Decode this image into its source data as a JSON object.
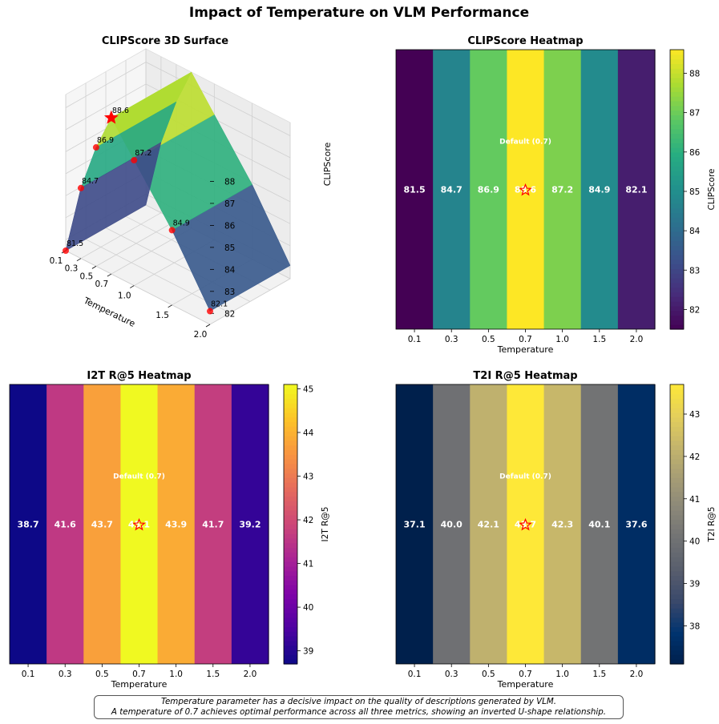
{
  "figure_title": "Impact of Temperature on VLM Performance",
  "caption": {
    "line1": "Temperature parameter has a decisive impact on the quality of descriptions generated by VLM.",
    "line2": "A temperature of 0.7 achieves optimal performance across all three metrics, showing an inverted U-shape relationship."
  },
  "colors": {
    "highlight_marker": "#ff0000",
    "annotation_text": "#ffffff"
  },
  "chart_data": [
    {
      "type": "surface3d",
      "title": "CLIPScore 3D Surface",
      "xlabel": "Temperature",
      "zlabel": "CLIPScore",
      "x_ticks": [
        "0.1",
        "0.3",
        "0.5",
        "0.7",
        "1.0",
        "1.5",
        "2.0"
      ],
      "z_ticks": [
        "82",
        "83",
        "84",
        "85",
        "86",
        "87",
        "88"
      ],
      "x": [
        0.1,
        0.3,
        0.5,
        0.7,
        1.0,
        1.5,
        2.0
      ],
      "values": [
        81.5,
        84.7,
        86.9,
        88.6,
        87.2,
        84.9,
        82.1
      ],
      "point_labels": [
        "81.5",
        "84.7",
        "86.9",
        "88.6",
        "87.2",
        "84.9",
        "82.1"
      ],
      "highlight_index": 3,
      "colormap": "viridis",
      "grid": true
    },
    {
      "type": "heatmap",
      "title": "CLIPScore Heatmap",
      "xlabel": "Temperature",
      "colorbar_label": "CLIPScore",
      "colormap": "viridis",
      "categories": [
        "0.1",
        "0.3",
        "0.5",
        "0.7",
        "1.0",
        "1.5",
        "2.0"
      ],
      "values": [
        81.5,
        84.7,
        86.9,
        88.6,
        87.2,
        84.9,
        82.1
      ],
      "cell_labels": [
        "81.5",
        "84.7",
        "86.9",
        "88.6",
        "87.2",
        "84.9",
        "82.1"
      ],
      "colorbar_ticks": [
        "82",
        "83",
        "84",
        "85",
        "86",
        "87",
        "88"
      ],
      "annotation": "Default (0.7)",
      "highlight_index": 3
    },
    {
      "type": "heatmap",
      "title": "I2T R@5 Heatmap",
      "xlabel": "Temperature",
      "colorbar_label": "I2T R@5",
      "colormap": "plasma",
      "categories": [
        "0.1",
        "0.3",
        "0.5",
        "0.7",
        "1.0",
        "1.5",
        "2.0"
      ],
      "values": [
        38.7,
        41.6,
        43.7,
        45.1,
        43.9,
        41.7,
        39.2
      ],
      "cell_labels": [
        "38.7",
        "41.6",
        "43.7",
        "45.1",
        "43.9",
        "41.7",
        "39.2"
      ],
      "colorbar_ticks": [
        "39",
        "40",
        "41",
        "42",
        "43",
        "44",
        "45"
      ],
      "annotation": "Default (0.7)",
      "highlight_index": 3
    },
    {
      "type": "heatmap",
      "title": "T2I R@5 Heatmap",
      "xlabel": "Temperature",
      "colorbar_label": "T2I R@5",
      "colormap": "cividis",
      "categories": [
        "0.1",
        "0.3",
        "0.5",
        "0.7",
        "1.0",
        "1.5",
        "2.0"
      ],
      "values": [
        37.1,
        40.0,
        42.1,
        43.7,
        42.3,
        40.1,
        37.6
      ],
      "cell_labels": [
        "37.1",
        "40.0",
        "42.1",
        "43.7",
        "42.3",
        "40.1",
        "37.6"
      ],
      "colorbar_ticks": [
        "38",
        "39",
        "40",
        "41",
        "42",
        "43"
      ],
      "annotation": "Default (0.7)",
      "highlight_index": 3
    }
  ]
}
